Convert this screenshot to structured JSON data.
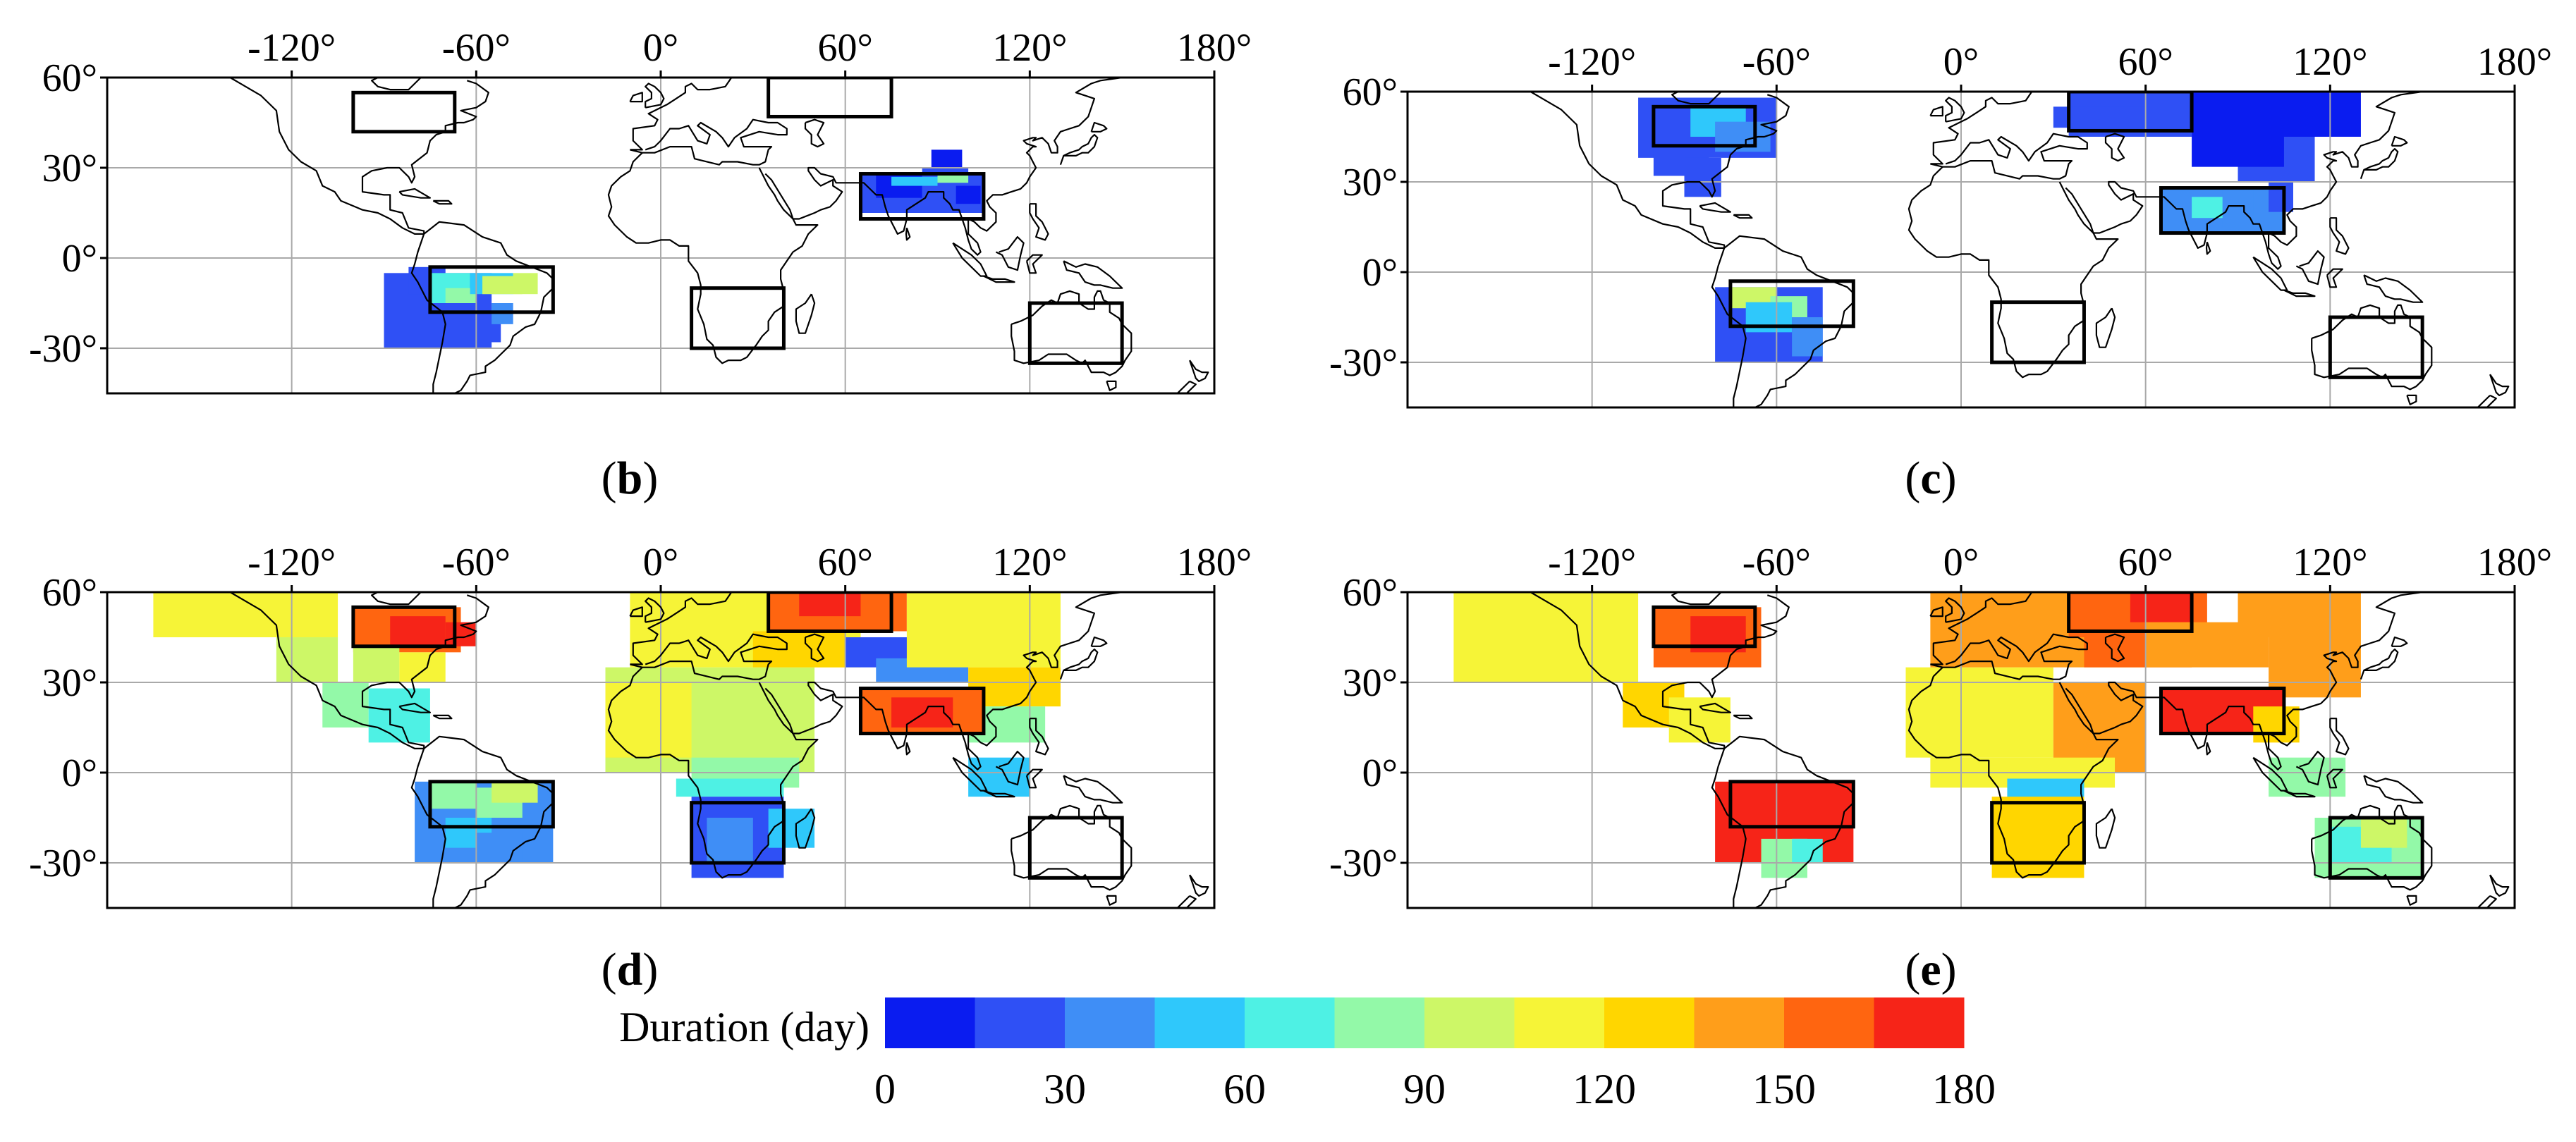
{
  "figure": {
    "lon_ticks": [
      "-120°",
      "-60°",
      "0°",
      "60°",
      "120°",
      "180°"
    ],
    "lat_ticks": [
      "60°",
      "30°",
      "0°",
      "-30°"
    ],
    "lon_tick_values": [
      -120,
      -60,
      0,
      60,
      120,
      180
    ],
    "lat_tick_values": [
      60,
      30,
      0,
      -30
    ],
    "extent": {
      "lon_min": -180,
      "lon_max": 180,
      "lat_min": -45,
      "lat_max": 60
    }
  },
  "panels": [
    {
      "id": "b",
      "label_open": "(",
      "label_letter": "b",
      "label_close": ")",
      "description": "Sparse low-duration values over South America and South/East Asia"
    },
    {
      "id": "c",
      "label_open": "(",
      "label_letter": "c",
      "label_close": ")",
      "description": "Low-duration values over North America, Eurasia, South America"
    },
    {
      "id": "d",
      "label_open": "(",
      "label_letter": "d",
      "label_close": ")",
      "description": "Medium durations over most land, high over NE America and S Asia"
    },
    {
      "id": "e",
      "label_open": "(",
      "label_letter": "e",
      "label_close": ")",
      "description": "High durations over most land"
    }
  ],
  "regions": [
    {
      "name": "north-america",
      "lon": [
        -100,
        -67
      ],
      "lat": [
        42,
        55
      ]
    },
    {
      "name": "north-eurasia",
      "lon": [
        35,
        75
      ],
      "lat": [
        47,
        60
      ]
    },
    {
      "name": "south-asia",
      "lon": [
        65,
        105
      ],
      "lat": [
        13,
        28
      ]
    },
    {
      "name": "south-america",
      "lon": [
        -75,
        -35
      ],
      "lat": [
        -18,
        -3
      ]
    },
    {
      "name": "southern-africa",
      "lon": [
        10,
        40
      ],
      "lat": [
        -30,
        -10
      ]
    },
    {
      "name": "australia",
      "lon": [
        120,
        150
      ],
      "lat": [
        -35,
        -15
      ]
    }
  ],
  "colorbar": {
    "title": "Duration (day)",
    "colors": [
      "#0a1cf0",
      "#2f50f5",
      "#3f8ef6",
      "#2fc8fb",
      "#4ef1e4",
      "#93f9a8",
      "#cdf767",
      "#f6f437",
      "#ffd600",
      "#ff9e1a",
      "#ff6510",
      "#f62418"
    ],
    "tick_labels": [
      "0",
      "30",
      "60",
      "90",
      "120",
      "150",
      "180"
    ],
    "min": 0,
    "max": 180
  }
}
